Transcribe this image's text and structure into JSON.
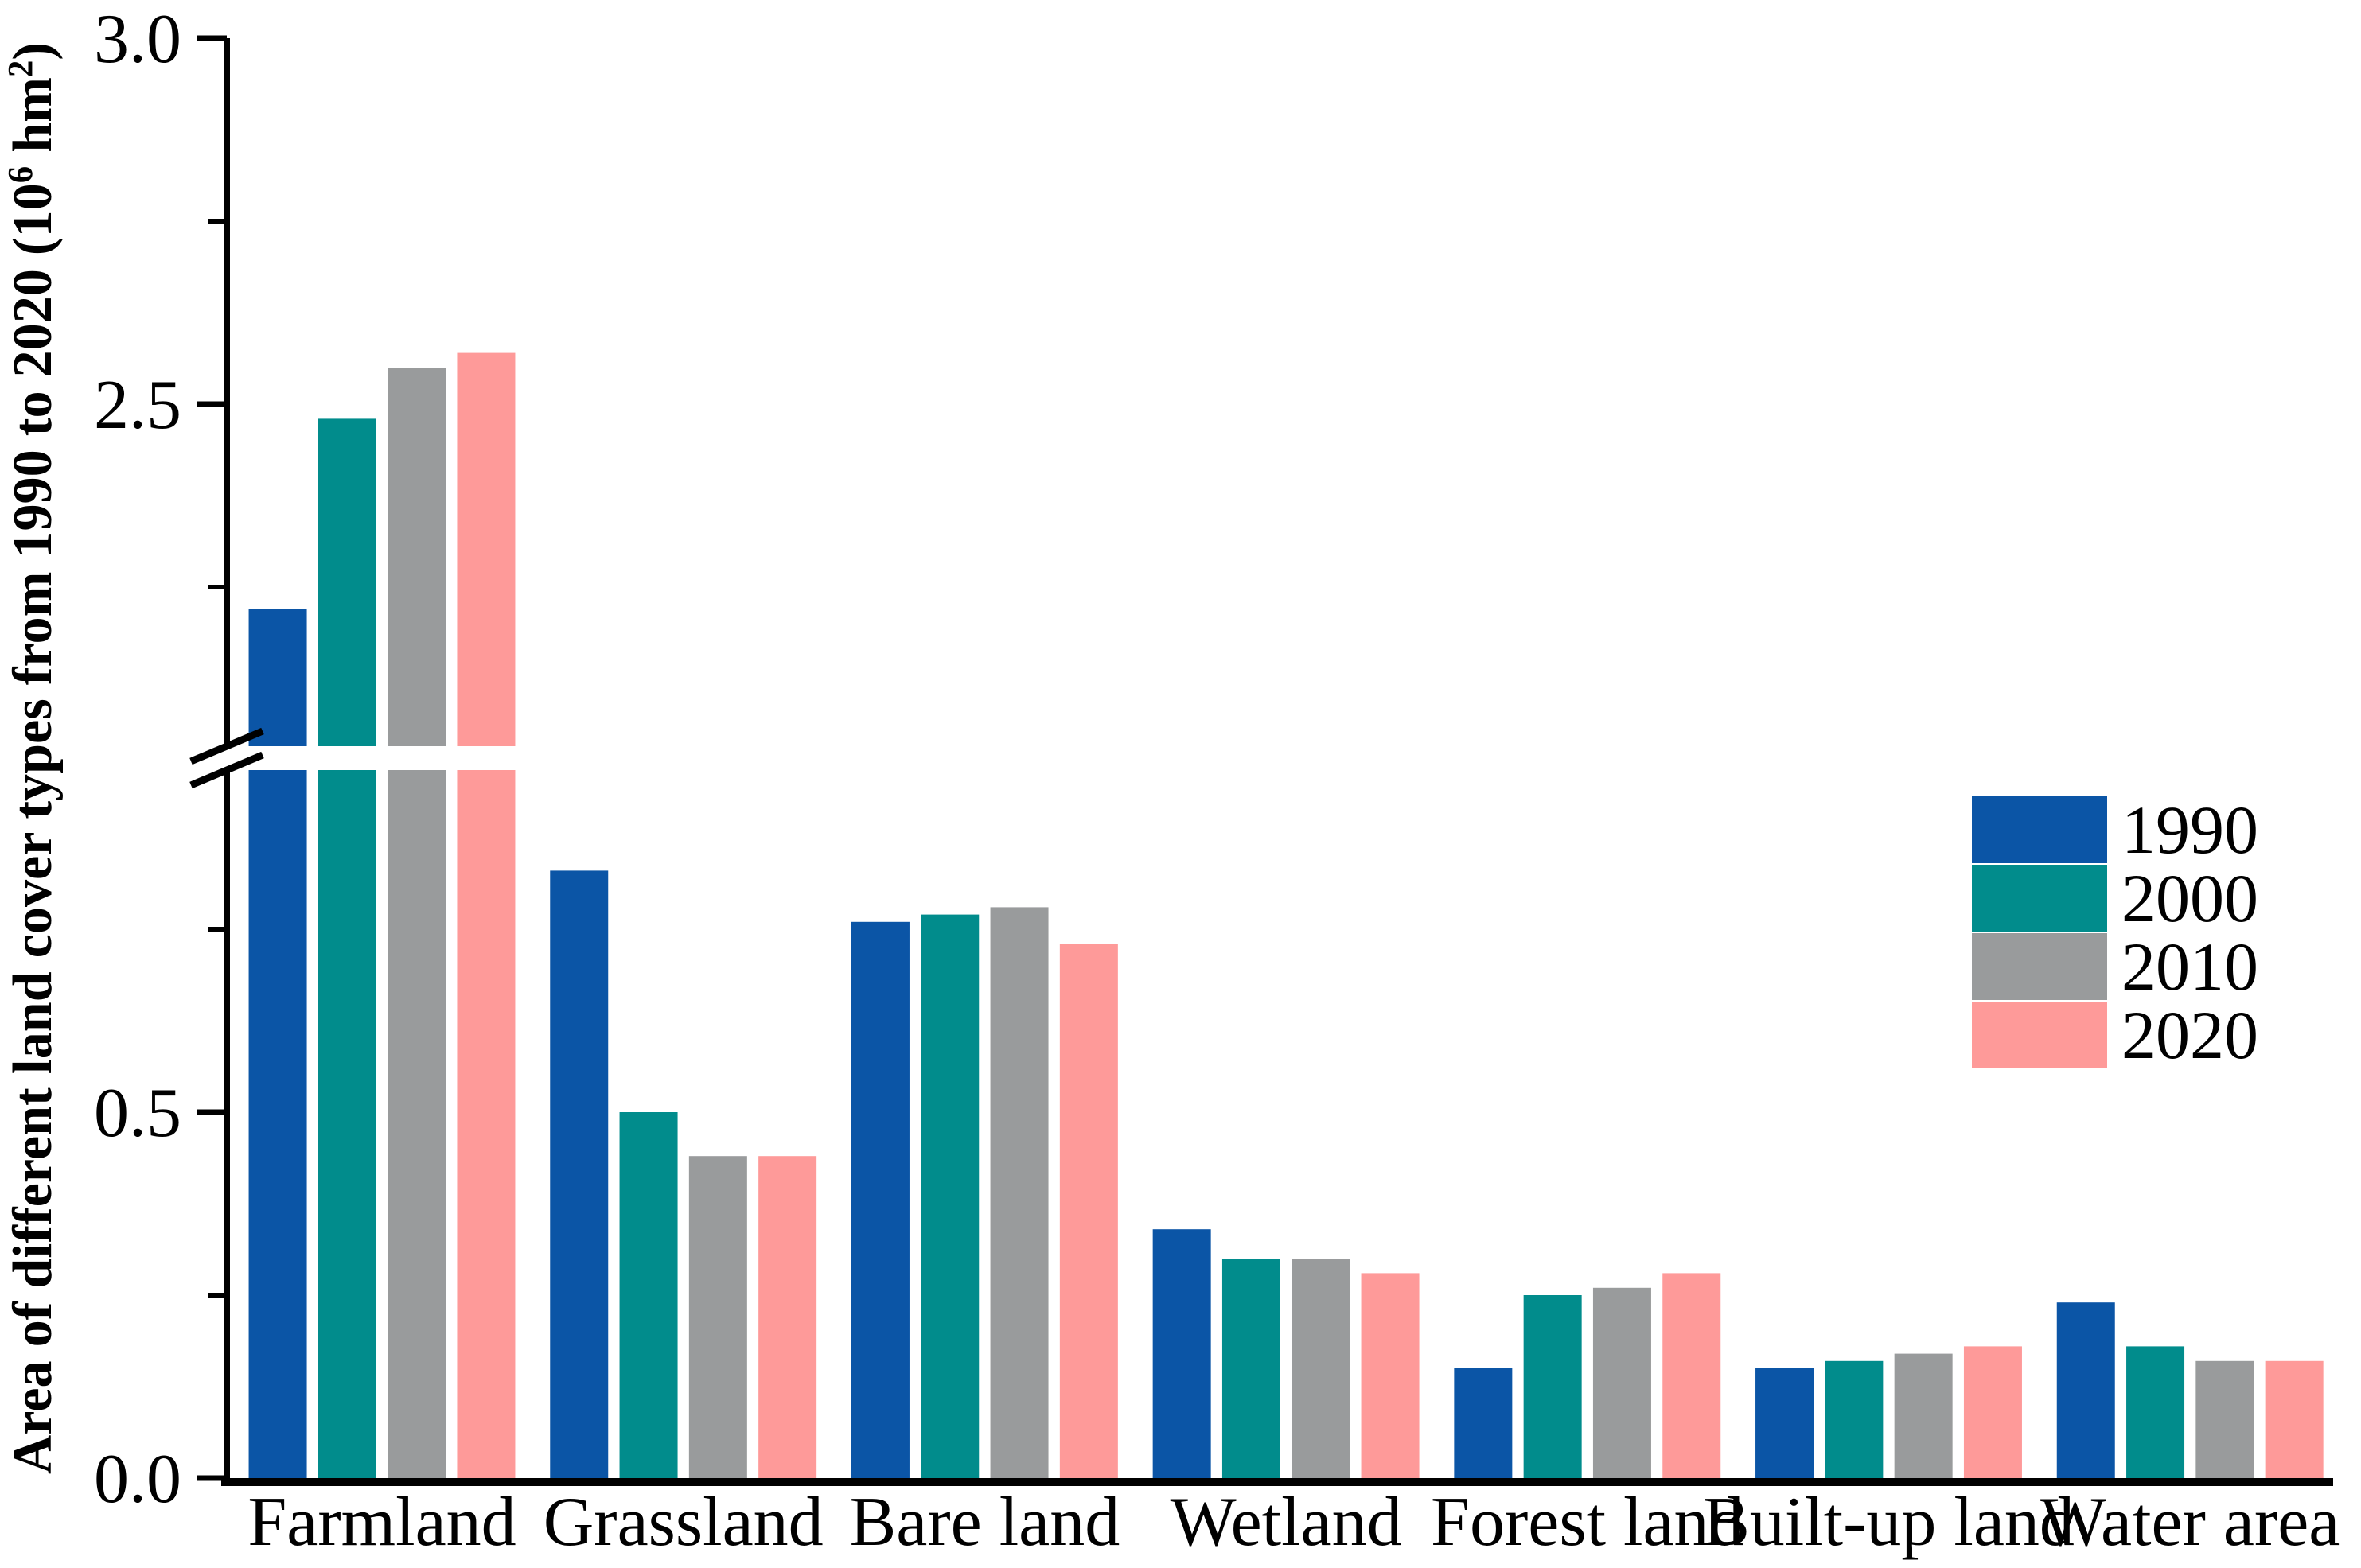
{
  "chart_data": {
    "type": "bar",
    "title": "",
    "xlabel": "",
    "ylabel": "Area of different land cover types from 1990 to 2020 (10⁶ hm²)",
    "ylabel_runs": [
      {
        "t": "Area of different land cover types from 1990 to 2020 (10",
        "sup": false
      },
      {
        "t": "6",
        "sup": true
      },
      {
        "t": " hm",
        "sup": false
      },
      {
        "t": "2",
        "sup": true
      },
      {
        "t": ")",
        "sup": false
      }
    ],
    "categories": [
      "Farmland",
      "Grassland",
      "Bare land",
      "Wetland",
      "Forest land",
      "Built-up land",
      "Water area"
    ],
    "series": [
      {
        "name": "1990",
        "color": "#0b55a6",
        "values": [
          2.22,
          0.83,
          0.76,
          0.34,
          0.15,
          0.15,
          0.24
        ]
      },
      {
        "name": "2000",
        "color": "#018c8c",
        "values": [
          2.48,
          0.5,
          0.77,
          0.3,
          0.25,
          0.16,
          0.18
        ]
      },
      {
        "name": "2010",
        "color": "#999b9c",
        "values": [
          2.55,
          0.44,
          0.78,
          0.3,
          0.26,
          0.17,
          0.16
        ]
      },
      {
        "name": "2020",
        "color": "#fe9a99",
        "values": [
          2.57,
          0.44,
          0.73,
          0.28,
          0.28,
          0.18,
          0.16
        ]
      }
    ],
    "y_axis": {
      "unit": "10⁶ hm²",
      "ylim": [
        0.0,
        3.0
      ],
      "break_from": 1.0,
      "break_to": 2.0,
      "major_ticks": [
        {
          "v": 0.0,
          "label": "0.0"
        },
        {
          "v": 0.5,
          "label": "0.5"
        },
        {
          "v": 2.5,
          "label": "2.5"
        },
        {
          "v": 3.0,
          "label": "3.0"
        }
      ],
      "minor_ticks": [
        0.25,
        0.75,
        2.25,
        2.75
      ]
    },
    "legend": {
      "position": "right",
      "entries": [
        "1990",
        "2000",
        "2010",
        "2020"
      ]
    },
    "grid": false,
    "axis_color": "#000000",
    "background": "#ffffff"
  }
}
